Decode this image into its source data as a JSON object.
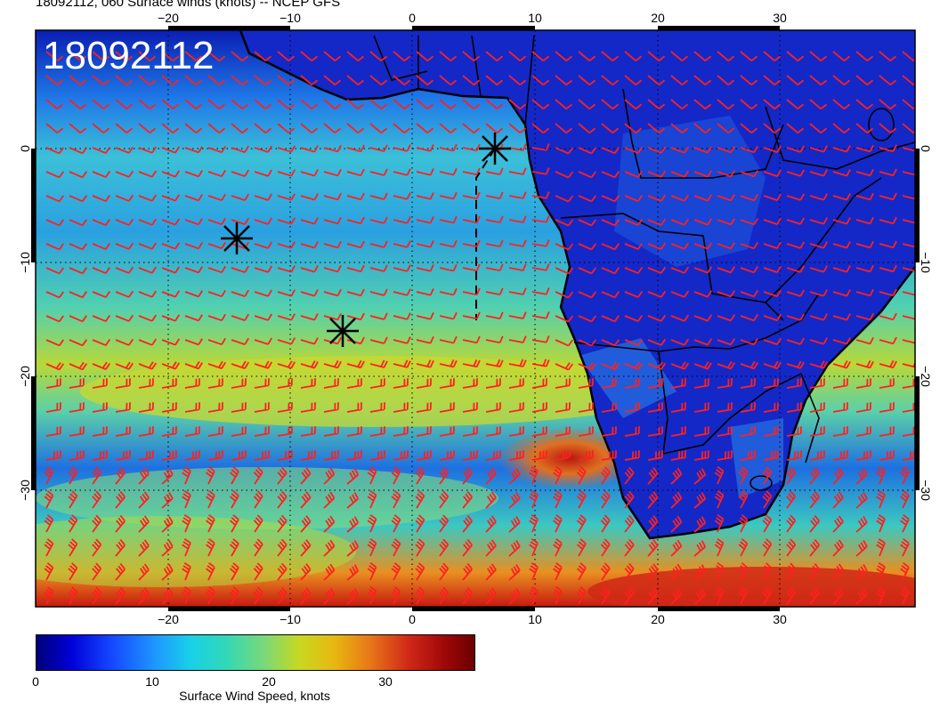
{
  "title": "18092112, 060 Surface winds (knots) -- NCEP GFS",
  "timestamp": "18092112",
  "x_ticks": [
    "−20",
    "−10",
    "0",
    "10",
    "20",
    "30"
  ],
  "y_ticks": [
    "0",
    "−10",
    "−20",
    "−30"
  ],
  "colorbar": {
    "label": "Surface Wind Speed, knots",
    "ticks": [
      "0",
      "10",
      "20",
      "30"
    ]
  },
  "colors": {
    "barb": "#ff2020",
    "coast": "#000000",
    "label_stamp": "#ffffff"
  },
  "icons": [
    "storm-marker-icon",
    "wind-barb-icon"
  ]
}
